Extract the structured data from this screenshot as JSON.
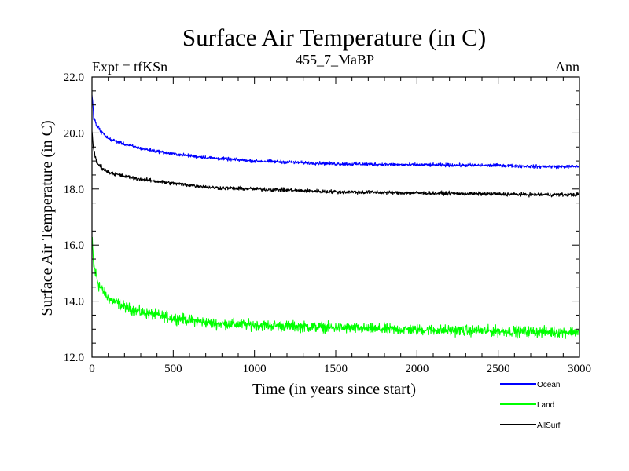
{
  "chart_data": {
    "type": "line",
    "title": "Surface Air Temperature (in C)",
    "subtitle": "455_7_MaBP",
    "left_label": "Expt = tfKSn",
    "right_label": "Ann",
    "xlabel": "Time (in years since start)",
    "ylabel": "Surface Air Temperature (in C)",
    "xlim": [
      0,
      3000
    ],
    "ylim": [
      12.0,
      22.0
    ],
    "x_ticks": [
      0,
      500,
      1000,
      1500,
      2000,
      2500,
      3000
    ],
    "y_ticks": [
      12.0,
      14.0,
      16.0,
      18.0,
      20.0,
      22.0
    ],
    "y_tick_labels": [
      "12.0",
      "14.0",
      "16.0",
      "18.0",
      "20.0",
      "22.0"
    ],
    "grid": false,
    "legend_position": "bottom-right, below plot",
    "series": [
      {
        "name": "Ocean",
        "color": "#0000ff",
        "x": [
          0,
          10,
          25,
          50,
          100,
          200,
          300,
          500,
          750,
          1000,
          1250,
          1500,
          1750,
          2000,
          2250,
          2500,
          2750,
          3000
        ],
        "values": [
          21.4,
          20.6,
          20.3,
          20.1,
          19.8,
          19.6,
          19.45,
          19.25,
          19.1,
          19.0,
          18.95,
          18.9,
          18.88,
          18.86,
          18.85,
          18.84,
          18.8,
          18.8
        ],
        "noise_amplitude": 0.09
      },
      {
        "name": "Land",
        "color": "#00ff00",
        "x": [
          0,
          10,
          25,
          50,
          100,
          200,
          300,
          500,
          750,
          1000,
          1250,
          1500,
          1750,
          2000,
          2250,
          2500,
          2750,
          3000
        ],
        "values": [
          16.2,
          15.3,
          14.9,
          14.5,
          14.1,
          13.8,
          13.6,
          13.4,
          13.2,
          13.15,
          13.1,
          13.05,
          13.0,
          12.98,
          12.95,
          12.93,
          12.9,
          12.9
        ],
        "noise_amplitude": 0.28
      },
      {
        "name": "AllSurf",
        "color": "#000000",
        "x": [
          0,
          10,
          25,
          50,
          100,
          200,
          300,
          500,
          750,
          1000,
          1250,
          1500,
          1750,
          2000,
          2250,
          2500,
          2750,
          3000
        ],
        "values": [
          20.1,
          19.4,
          19.0,
          18.8,
          18.6,
          18.45,
          18.35,
          18.2,
          18.05,
          18.0,
          17.95,
          17.9,
          17.88,
          17.86,
          17.84,
          17.82,
          17.8,
          17.8
        ],
        "noise_amplitude": 0.1
      }
    ]
  }
}
